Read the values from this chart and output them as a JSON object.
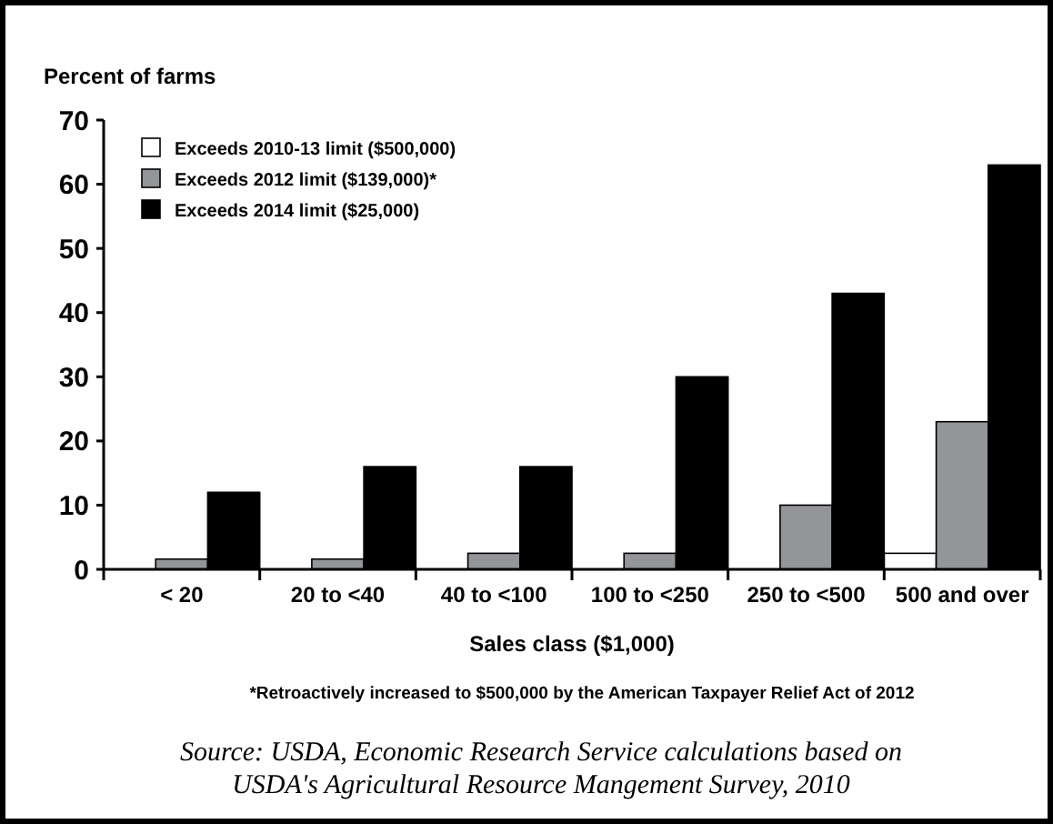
{
  "chart_data": {
    "type": "bar",
    "ylabel": "Percent of farms",
    "xlabel": "Sales class ($1,000)",
    "categories": [
      "< 20",
      "20 to <40",
      "40 to <100",
      "100 to <250",
      "250 to <500",
      "500 and over"
    ],
    "series": [
      {
        "name": "Exceeds 2010-13 limit ($500,000)",
        "color": "#ffffff",
        "values": [
          0,
          0,
          0,
          0,
          0,
          2.5
        ]
      },
      {
        "name": "Exceeds 2012 limit ($139,000)*",
        "color": "#939598",
        "values": [
          1.6,
          1.6,
          2.5,
          2.5,
          10,
          23
        ]
      },
      {
        "name": "Exceeds 2014 limit ($25,000)",
        "color": "#000000",
        "values": [
          12,
          16,
          16,
          30,
          43,
          63
        ]
      }
    ],
    "ylim": [
      0,
      70
    ],
    "yticks": [
      0,
      10,
      20,
      30,
      40,
      50,
      60,
      70
    ],
    "grid": false,
    "legend": "top left",
    "annotations": [
      "*Retroactively increased to $500,000 by the American Taxpayer Relief Act of 2012",
      "Source: USDA, Economic Research Service calculations based on USDA's Agricultural Resource Mangement Survey, 2010"
    ]
  }
}
